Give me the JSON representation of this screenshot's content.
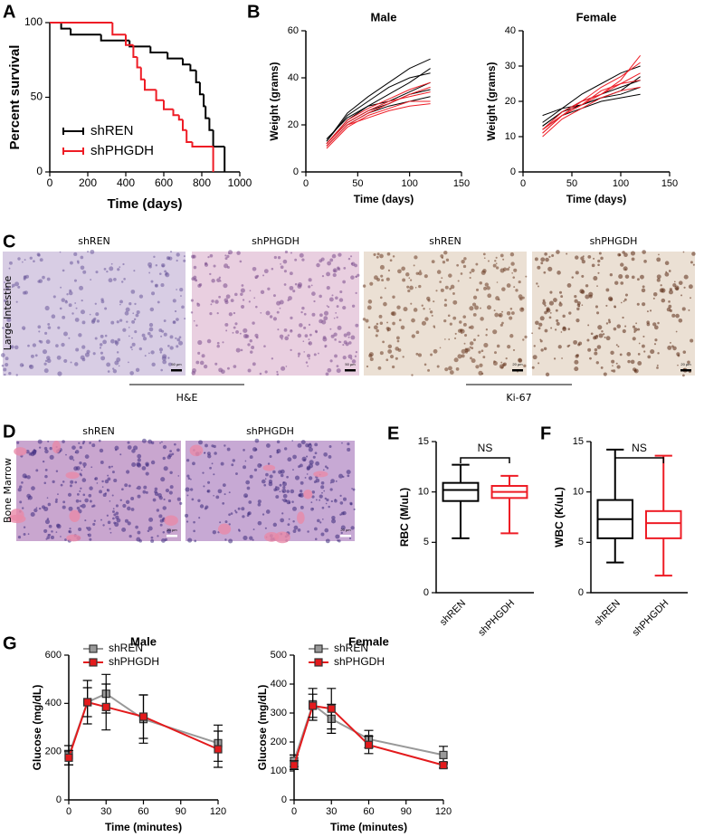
{
  "chart_data": [
    {
      "panel": "A",
      "type": "step",
      "ylabel": "Percent survival",
      "xlabel": "Time (days)",
      "xlim": [
        0,
        1000
      ],
      "ylim": [
        0,
        100
      ],
      "xticks": [
        0,
        200,
        400,
        600,
        800,
        1000
      ],
      "yticks": [
        0,
        50,
        100
      ],
      "legend": "lower left",
      "series": [
        {
          "name": "shREN",
          "color": "#000000",
          "x": [
            0,
            60,
            110,
            270,
            420,
            530,
            620,
            700,
            740,
            770,
            790,
            810,
            820,
            840,
            860,
            920
          ],
          "values": [
            100,
            96,
            92,
            88,
            84,
            80,
            76,
            72,
            68,
            60,
            52,
            44,
            36,
            28,
            17,
            0
          ]
        },
        {
          "name": "shPHGDH",
          "color": "#ee1c25",
          "x": [
            0,
            300,
            330,
            400,
            440,
            460,
            480,
            500,
            560,
            600,
            650,
            680,
            700,
            720,
            750,
            860
          ],
          "values": [
            100,
            100,
            92,
            85,
            77,
            70,
            62,
            55,
            48,
            42,
            38,
            35,
            28,
            20,
            17,
            0
          ]
        }
      ]
    },
    {
      "panel": "B",
      "type": "line",
      "title": "Male",
      "ylabel": "Weight (grams)",
      "xlabel": "Time (days)",
      "xlim": [
        0,
        150
      ],
      "ylim": [
        0,
        60
      ],
      "xticks": [
        0,
        50,
        100,
        150
      ],
      "yticks": [
        0,
        20,
        40,
        60
      ],
      "x": [
        20,
        40,
        60,
        80,
        100,
        120
      ],
      "series": [
        {
          "color": "#000000",
          "values": [
            13,
            25,
            32,
            38,
            44,
            48
          ]
        },
        {
          "color": "#000000",
          "values": [
            12,
            22,
            28,
            33,
            38,
            44
          ]
        },
        {
          "color": "#000000",
          "values": [
            14,
            23,
            28,
            30,
            34,
            38
          ]
        },
        {
          "color": "#000000",
          "values": [
            11,
            20,
            25,
            28,
            30,
            32
          ]
        },
        {
          "color": "#000000",
          "values": [
            13,
            24,
            30,
            36,
            40,
            42
          ]
        },
        {
          "color": "#000000",
          "values": [
            12,
            21,
            26,
            29,
            33,
            35
          ]
        },
        {
          "color": "#ee1c25",
          "values": [
            11,
            20,
            25,
            29,
            33,
            36
          ]
        },
        {
          "color": "#ee1c25",
          "values": [
            12,
            22,
            27,
            31,
            35,
            38
          ]
        },
        {
          "color": "#ee1c25",
          "values": [
            10,
            19,
            24,
            27,
            30,
            30
          ]
        },
        {
          "color": "#ee1c25",
          "values": [
            12,
            21,
            26,
            30,
            32,
            34
          ]
        },
        {
          "color": "#ee1c25",
          "values": [
            11,
            20,
            23,
            26,
            28,
            29
          ]
        }
      ]
    },
    {
      "type": "line",
      "title": "Female",
      "ylabel": "Weight (grams)",
      "xlabel": "Time (days)",
      "xlim": [
        0,
        150
      ],
      "ylim": [
        0,
        40
      ],
      "xticks": [
        0,
        50,
        100,
        150
      ],
      "yticks": [
        0,
        10,
        20,
        30,
        40
      ],
      "x": [
        20,
        40,
        60,
        80,
        100,
        120
      ],
      "series": [
        {
          "color": "#000000",
          "values": [
            16,
            18,
            19,
            21,
            22,
            24
          ]
        },
        {
          "color": "#000000",
          "values": [
            13,
            17,
            20,
            22,
            24,
            26
          ]
        },
        {
          "color": "#000000",
          "values": [
            12,
            16,
            18,
            20,
            21,
            22
          ]
        },
        {
          "color": "#000000",
          "values": [
            14,
            18,
            22,
            25,
            28,
            30
          ]
        },
        {
          "color": "#000000",
          "values": [
            13,
            17,
            19,
            21,
            23,
            27
          ]
        },
        {
          "color": "#ee1c25",
          "values": [
            11,
            16,
            19,
            22,
            26,
            33
          ]
        },
        {
          "color": "#ee1c25",
          "values": [
            12,
            17,
            20,
            24,
            27,
            31
          ]
        },
        {
          "color": "#ee1c25",
          "values": [
            10,
            15,
            18,
            21,
            23,
            24
          ]
        },
        {
          "color": "#ee1c25",
          "values": [
            12,
            16,
            19,
            23,
            25,
            28
          ]
        },
        {
          "color": "#ee1c25",
          "values": [
            11,
            16,
            20,
            22,
            25,
            26
          ]
        }
      ]
    },
    {
      "panel": "E",
      "type": "box",
      "ylabel": "RBC (M/uL)",
      "ylim": [
        0,
        15
      ],
      "yticks": [
        0,
        5,
        10,
        15
      ],
      "categories": [
        "shREN",
        "shPHGDH"
      ],
      "annotation": "NS",
      "boxes": [
        {
          "color": "#000000",
          "stats": [
            5.4,
            9.1,
            10.2,
            10.9,
            12.7
          ]
        },
        {
          "color": "#ee1c25",
          "stats": [
            5.9,
            9.4,
            10.0,
            10.6,
            11.6
          ]
        }
      ]
    },
    {
      "panel": "F",
      "type": "box",
      "ylabel": "WBC (K/uL)",
      "ylim": [
        0,
        15
      ],
      "yticks": [
        0,
        5,
        10,
        15
      ],
      "categories": [
        "shREN",
        "shPHGDH"
      ],
      "annotation": "NS",
      "boxes": [
        {
          "color": "#000000",
          "stats": [
            3.0,
            5.4,
            7.3,
            9.2,
            14.2
          ]
        },
        {
          "color": "#ee1c25",
          "stats": [
            1.7,
            5.4,
            6.9,
            8.1,
            13.6
          ]
        }
      ]
    },
    {
      "panel": "G",
      "type": "errorline",
      "title": "Male",
      "ylabel": "Glucose (mg/dL)",
      "xlabel": "Time (minutes)",
      "xlim": [
        0,
        120
      ],
      "ylim": [
        0,
        600
      ],
      "xticks": [
        0,
        30,
        60,
        90,
        120
      ],
      "yticks": [
        0,
        200,
        400,
        600
      ],
      "legend": "upper left",
      "x": [
        0,
        15,
        30,
        60,
        120
      ],
      "series": [
        {
          "name": "shREN",
          "color": "#999999",
          "values": [
            185,
            405,
            440,
            335,
            235
          ],
          "errors": [
            40,
            90,
            80,
            100,
            75
          ]
        },
        {
          "name": "shPHGDH",
          "color": "#e31a1c",
          "values": [
            175,
            405,
            385,
            345,
            210
          ],
          "errors": [
            30,
            60,
            95,
            90,
            75
          ]
        }
      ]
    },
    {
      "type": "errorline",
      "title": "Female",
      "ylabel": "Glucose (mg/dL)",
      "xlabel": "Time (minutes)",
      "xlim": [
        0,
        120
      ],
      "ylim": [
        0,
        500
      ],
      "xticks": [
        0,
        30,
        60,
        90,
        120
      ],
      "yticks": [
        0,
        100,
        200,
        300,
        400,
        500
      ],
      "legend": "upper left",
      "x": [
        0,
        15,
        30,
        60,
        120
      ],
      "series": [
        {
          "name": "shREN",
          "color": "#999999",
          "values": [
            135,
            330,
            280,
            210,
            155
          ],
          "errors": [
            20,
            55,
            50,
            30,
            30
          ]
        },
        {
          "name": "shPHGDH",
          "color": "#e31a1c",
          "values": [
            120,
            325,
            315,
            190,
            120
          ],
          "errors": [
            15,
            40,
            70,
            30,
            10
          ]
        }
      ]
    }
  ],
  "images": [
    {
      "panel": "C",
      "tissue": "Large Intestine",
      "labels": [
        "shREN",
        "shPHGDH",
        "shREN",
        "shPHGDH"
      ],
      "stains": [
        "H&E",
        "Ki-67"
      ],
      "scale_bars": [
        "50 µm",
        "50 µm",
        "20 µm",
        "20 µm"
      ]
    },
    {
      "panel": "D",
      "tissue": "Bone Marrow",
      "labels": [
        "shREN",
        "shPHGDH"
      ],
      "scale_bars": [
        "20 µm",
        "20 µm"
      ]
    }
  ]
}
